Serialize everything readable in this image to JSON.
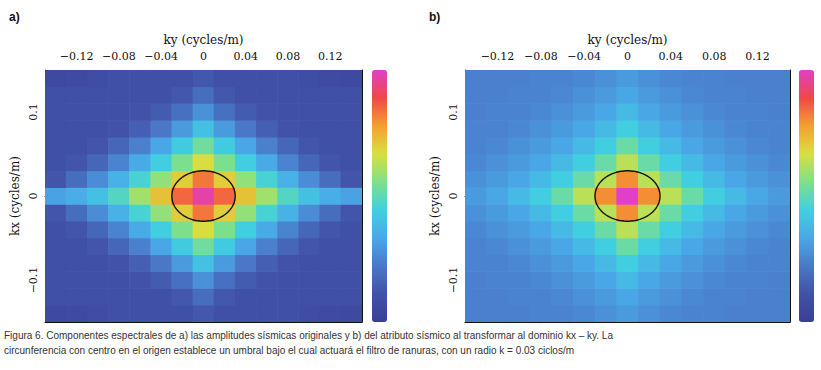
{
  "chart_data": [
    {
      "type": "heatmap",
      "panel_label": "a)",
      "xlabel": "ky (cycles/m)",
      "ylabel": "kx (cycles/m)",
      "xlim": [
        -0.15,
        0.15
      ],
      "xticks": [
        {
          "value": -0.12,
          "label": "−0.12"
        },
        {
          "value": -0.08,
          "label": "−0.08"
        },
        {
          "value": -0.04,
          "label": "−0.04"
        },
        0,
        0.04,
        0.08,
        0.12
      ],
      "ylim": [
        -0.15,
        0.15
      ],
      "yticks": [
        {
          "value": -0.1,
          "label": "−0.1"
        },
        0,
        0.1
      ],
      "x": [
        -0.14,
        -0.12,
        -0.1,
        -0.08,
        -0.06,
        -0.04,
        -0.02,
        0,
        0.02,
        0.04,
        0.06,
        0.08,
        0.1,
        0.12,
        0.14
      ],
      "y": [
        -0.14,
        -0.12,
        -0.1,
        -0.08,
        -0.06,
        -0.04,
        -0.02,
        0,
        0.02,
        0.04,
        0.06,
        0.08,
        0.1,
        0.12,
        0.14
      ],
      "z": [
        [
          0.06,
          0.07,
          0.08,
          0.1,
          0.1,
          0.1,
          0.1,
          0.13,
          0.1,
          0.1,
          0.1,
          0.1,
          0.08,
          0.07,
          0.06
        ],
        [
          0.1,
          0.1,
          0.1,
          0.1,
          0.1,
          0.1,
          0.13,
          0.19,
          0.13,
          0.1,
          0.1,
          0.1,
          0.1,
          0.1,
          0.1
        ],
        [
          0.1,
          0.1,
          0.1,
          0.1,
          0.11,
          0.14,
          0.2,
          0.28,
          0.2,
          0.14,
          0.11,
          0.1,
          0.1,
          0.1,
          0.1
        ],
        [
          0.1,
          0.1,
          0.1,
          0.11,
          0.15,
          0.22,
          0.3,
          0.4,
          0.3,
          0.22,
          0.15,
          0.11,
          0.1,
          0.1,
          0.1
        ],
        [
          0.1,
          0.1,
          0.12,
          0.17,
          0.24,
          0.33,
          0.43,
          0.53,
          0.43,
          0.33,
          0.24,
          0.17,
          0.12,
          0.1,
          0.1
        ],
        [
          0.1,
          0.12,
          0.17,
          0.25,
          0.34,
          0.44,
          0.55,
          0.67,
          0.55,
          0.44,
          0.34,
          0.25,
          0.17,
          0.12,
          0.1
        ],
        [
          0.12,
          0.19,
          0.27,
          0.36,
          0.46,
          0.58,
          0.7,
          0.83,
          0.7,
          0.58,
          0.46,
          0.36,
          0.27,
          0.19,
          0.12
        ],
        [
          0.32,
          0.35,
          0.4,
          0.48,
          0.6,
          0.72,
          0.85,
          0.97,
          0.85,
          0.72,
          0.6,
          0.48,
          0.4,
          0.35,
          0.32
        ],
        [
          0.12,
          0.19,
          0.27,
          0.36,
          0.46,
          0.58,
          0.7,
          0.83,
          0.7,
          0.58,
          0.46,
          0.36,
          0.27,
          0.19,
          0.12
        ],
        [
          0.1,
          0.12,
          0.17,
          0.25,
          0.34,
          0.44,
          0.55,
          0.67,
          0.55,
          0.44,
          0.34,
          0.25,
          0.17,
          0.12,
          0.1
        ],
        [
          0.1,
          0.1,
          0.12,
          0.17,
          0.24,
          0.33,
          0.43,
          0.53,
          0.43,
          0.33,
          0.24,
          0.17,
          0.12,
          0.1,
          0.1
        ],
        [
          0.1,
          0.1,
          0.1,
          0.11,
          0.15,
          0.22,
          0.3,
          0.4,
          0.3,
          0.22,
          0.15,
          0.11,
          0.1,
          0.1,
          0.1
        ],
        [
          0.1,
          0.1,
          0.1,
          0.1,
          0.11,
          0.14,
          0.2,
          0.28,
          0.2,
          0.14,
          0.11,
          0.1,
          0.1,
          0.1,
          0.1
        ],
        [
          0.1,
          0.1,
          0.1,
          0.1,
          0.1,
          0.1,
          0.13,
          0.19,
          0.13,
          0.1,
          0.1,
          0.1,
          0.1,
          0.1,
          0.1
        ],
        [
          0.06,
          0.07,
          0.08,
          0.1,
          0.1,
          0.1,
          0.1,
          0.13,
          0.1,
          0.1,
          0.1,
          0.1,
          0.08,
          0.07,
          0.06
        ]
      ],
      "colorbar_range": [
        0,
        1
      ],
      "circle_center": [
        0,
        0
      ],
      "circle_radius": 0.03
    },
    {
      "type": "heatmap",
      "panel_label": "b)",
      "xlabel": "ky (cycles/m)",
      "ylabel": "kx (cycles/m)",
      "xlim": [
        -0.15,
        0.15
      ],
      "xticks": [
        {
          "value": -0.12,
          "label": "−0.12"
        },
        {
          "value": -0.08,
          "label": "−0.08"
        },
        {
          "value": -0.04,
          "label": "−0.04"
        },
        0,
        0.04,
        0.08,
        0.12
      ],
      "ylim": [
        -0.15,
        0.15
      ],
      "yticks": [
        {
          "value": -0.1,
          "label": "−0.1"
        },
        0,
        0.1
      ],
      "x": [
        -0.14,
        -0.12,
        -0.1,
        -0.08,
        -0.06,
        -0.04,
        -0.02,
        0,
        0.02,
        0.04,
        0.06,
        0.08,
        0.1,
        0.12,
        0.14
      ],
      "y": [
        -0.14,
        -0.12,
        -0.1,
        -0.08,
        -0.06,
        -0.04,
        -0.02,
        0,
        0.02,
        0.04,
        0.06,
        0.08,
        0.1,
        0.12,
        0.14
      ],
      "z": [
        [
          0.24,
          0.24,
          0.24,
          0.25,
          0.25,
          0.26,
          0.28,
          0.3,
          0.28,
          0.26,
          0.25,
          0.25,
          0.24,
          0.24,
          0.24
        ],
        [
          0.24,
          0.24,
          0.25,
          0.25,
          0.26,
          0.28,
          0.3,
          0.33,
          0.3,
          0.28,
          0.26,
          0.25,
          0.25,
          0.24,
          0.24
        ],
        [
          0.24,
          0.25,
          0.25,
          0.26,
          0.28,
          0.3,
          0.33,
          0.38,
          0.33,
          0.3,
          0.28,
          0.26,
          0.25,
          0.25,
          0.24
        ],
        [
          0.25,
          0.25,
          0.26,
          0.28,
          0.3,
          0.33,
          0.38,
          0.44,
          0.38,
          0.33,
          0.3,
          0.28,
          0.26,
          0.25,
          0.25
        ],
        [
          0.25,
          0.26,
          0.28,
          0.3,
          0.33,
          0.38,
          0.44,
          0.52,
          0.44,
          0.38,
          0.33,
          0.3,
          0.28,
          0.26,
          0.25
        ],
        [
          0.26,
          0.28,
          0.3,
          0.33,
          0.38,
          0.44,
          0.52,
          0.63,
          0.52,
          0.44,
          0.38,
          0.33,
          0.3,
          0.28,
          0.26
        ],
        [
          0.28,
          0.3,
          0.33,
          0.38,
          0.44,
          0.52,
          0.63,
          0.8,
          0.63,
          0.52,
          0.44,
          0.38,
          0.33,
          0.3,
          0.28
        ],
        [
          0.3,
          0.33,
          0.38,
          0.44,
          0.52,
          0.63,
          0.8,
          1.0,
          0.8,
          0.63,
          0.52,
          0.44,
          0.38,
          0.33,
          0.3
        ],
        [
          0.28,
          0.3,
          0.33,
          0.38,
          0.44,
          0.52,
          0.63,
          0.8,
          0.63,
          0.52,
          0.44,
          0.38,
          0.33,
          0.3,
          0.28
        ],
        [
          0.26,
          0.28,
          0.3,
          0.33,
          0.38,
          0.44,
          0.52,
          0.63,
          0.52,
          0.44,
          0.38,
          0.33,
          0.3,
          0.28,
          0.26
        ],
        [
          0.25,
          0.26,
          0.28,
          0.3,
          0.33,
          0.38,
          0.44,
          0.52,
          0.44,
          0.38,
          0.33,
          0.3,
          0.28,
          0.26,
          0.25
        ],
        [
          0.25,
          0.25,
          0.26,
          0.28,
          0.3,
          0.33,
          0.38,
          0.44,
          0.38,
          0.33,
          0.3,
          0.28,
          0.26,
          0.25,
          0.25
        ],
        [
          0.24,
          0.25,
          0.25,
          0.26,
          0.28,
          0.3,
          0.33,
          0.38,
          0.33,
          0.3,
          0.28,
          0.26,
          0.25,
          0.25,
          0.24
        ],
        [
          0.24,
          0.24,
          0.25,
          0.25,
          0.26,
          0.28,
          0.3,
          0.33,
          0.3,
          0.28,
          0.26,
          0.25,
          0.25,
          0.24,
          0.24
        ],
        [
          0.24,
          0.24,
          0.24,
          0.25,
          0.25,
          0.26,
          0.28,
          0.3,
          0.28,
          0.26,
          0.25,
          0.25,
          0.24,
          0.24,
          0.24
        ]
      ],
      "colorbar_range": [
        0,
        1
      ],
      "circle_center": [
        0,
        0
      ],
      "circle_radius": 0.03
    }
  ],
  "caption": [
    "Figura 6. Componentes espectrales de a) las amplitudes sísmicas originales y b) del atributo sísmico al transformar al dominio kx – ky. La",
    "circunferencia con centro en el origen establece un umbral bajo el cual actuará el filtro de ranuras, con un radio k = 0.03 ciclos/m"
  ]
}
